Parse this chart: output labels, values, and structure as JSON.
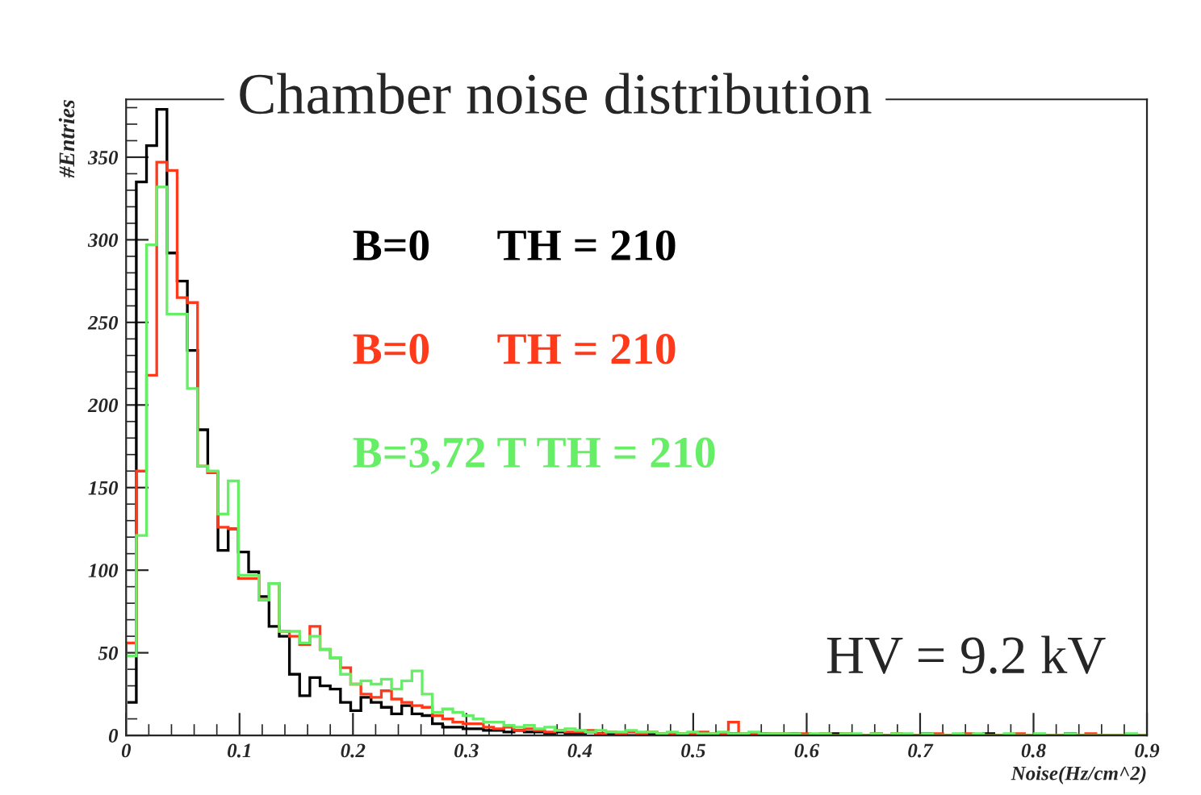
{
  "chart_data": {
    "type": "histogram",
    "title": "Chamber noise distribution",
    "xlabel": "Noise(Hz/cm^2)",
    "ylabel": "#Entries",
    "annotations": [
      "HV = 9.2 kV"
    ],
    "bins": [
      0,
      0.009,
      0.018,
      0.027,
      0.036,
      0.045,
      0.054,
      0.063,
      0.072,
      0.081,
      0.09,
      0.099,
      0.108,
      0.117,
      0.126,
      0.135,
      0.144,
      0.153,
      0.162,
      0.171,
      0.18,
      0.189,
      0.198,
      0.207,
      0.216,
      0.225,
      0.234,
      0.243,
      0.252,
      0.261,
      0.27,
      0.279,
      0.288,
      0.297,
      0.306,
      0.315,
      0.324,
      0.333,
      0.342,
      0.351,
      0.36,
      0.369,
      0.378,
      0.387,
      0.396,
      0.405,
      0.414,
      0.423,
      0.432,
      0.441,
      0.45,
      0.459,
      0.468,
      0.477,
      0.486,
      0.495,
      0.504,
      0.513,
      0.522,
      0.531,
      0.54,
      0.549,
      0.558,
      0.567,
      0.576,
      0.585,
      0.594,
      0.603,
      0.612,
      0.621,
      0.63,
      0.639,
      0.648,
      0.657,
      0.666,
      0.675,
      0.684,
      0.693,
      0.702,
      0.711,
      0.72,
      0.729,
      0.738,
      0.747,
      0.756,
      0.765,
      0.774,
      0.783,
      0.792,
      0.801,
      0.81,
      0.819,
      0.828,
      0.837,
      0.846,
      0.855,
      0.864,
      0.873,
      0.882,
      0.891,
      0.9
    ],
    "series": [
      {
        "name": "B=0      TH = 210",
        "color": "#000000",
        "values": [
          20,
          335,
          357,
          379,
          292,
          275,
          233,
          185,
          159,
          112,
          125,
          111,
          99,
          84,
          66,
          60,
          37,
          24,
          35,
          30,
          28,
          20,
          15,
          23,
          20,
          17,
          13,
          18,
          13,
          12,
          7,
          5,
          5,
          4,
          4,
          3,
          3,
          2,
          3,
          2,
          2,
          1,
          2,
          1,
          1,
          2,
          1,
          1,
          1,
          0,
          1,
          1,
          0,
          1,
          0,
          1,
          1,
          0,
          0,
          1,
          0,
          0,
          1,
          0,
          0,
          1,
          0,
          0,
          0,
          1,
          0,
          0,
          0,
          1,
          0,
          0,
          0,
          0,
          1,
          0,
          0,
          0,
          0,
          0,
          1,
          0,
          0,
          0,
          0,
          0,
          0,
          0,
          1,
          0,
          0,
          0,
          0,
          0,
          0,
          0
        ]
      },
      {
        "name": "B=0      TH = 210",
        "color": "#ff3a1a",
        "values": [
          56,
          160,
          218,
          347,
          342,
          265,
          262,
          163,
          159,
          126,
          125,
          95,
          95,
          82,
          92,
          63,
          60,
          55,
          66,
          52,
          47,
          41,
          31,
          25,
          23,
          27,
          22,
          20,
          18,
          17,
          12,
          10,
          8,
          7,
          7,
          5,
          4,
          5,
          3,
          4,
          3,
          2,
          3,
          2,
          2,
          3,
          1,
          2,
          1,
          2,
          1,
          2,
          1,
          1,
          1,
          1,
          2,
          1,
          1,
          8,
          1,
          1,
          0,
          1,
          1,
          0,
          1,
          0,
          1,
          0,
          1,
          0,
          0,
          1,
          0,
          1,
          0,
          0,
          0,
          1,
          0,
          0,
          1,
          0,
          0,
          0,
          0,
          1,
          0,
          0,
          0,
          0,
          0,
          0,
          1,
          0,
          0,
          0,
          0,
          0
        ]
      },
      {
        "name": "B=3,72 T TH = 210",
        "color": "#66ee66",
        "values": [
          48,
          121,
          297,
          332,
          255,
          255,
          210,
          163,
          160,
          134,
          154,
          97,
          97,
          82,
          92,
          63,
          63,
          56,
          60,
          52,
          47,
          37,
          31,
          33,
          31,
          34,
          28,
          33,
          39,
          25,
          14,
          16,
          14,
          12,
          10,
          8,
          8,
          6,
          5,
          6,
          4,
          5,
          3,
          4,
          3,
          2,
          3,
          2,
          2,
          3,
          2,
          2,
          1,
          2,
          1,
          2,
          1,
          1,
          2,
          1,
          1,
          2,
          1,
          1,
          1,
          1,
          0,
          1,
          1,
          0,
          1,
          1,
          0,
          1,
          0,
          1,
          1,
          0,
          1,
          0,
          0,
          1,
          0,
          1,
          0,
          0,
          1,
          0,
          0,
          1,
          0,
          0,
          1,
          0,
          0,
          0,
          0,
          0,
          1,
          0
        ]
      }
    ],
    "xlim": [
      0,
      0.9
    ],
    "ylim": [
      0,
      385
    ],
    "xticks": [
      0,
      0.1,
      0.2,
      0.3,
      0.4,
      0.5,
      0.6,
      0.7,
      0.8,
      0.9
    ],
    "yticks": [
      0,
      50,
      100,
      150,
      200,
      250,
      300,
      350
    ],
    "grid": false,
    "legend": "top"
  }
}
